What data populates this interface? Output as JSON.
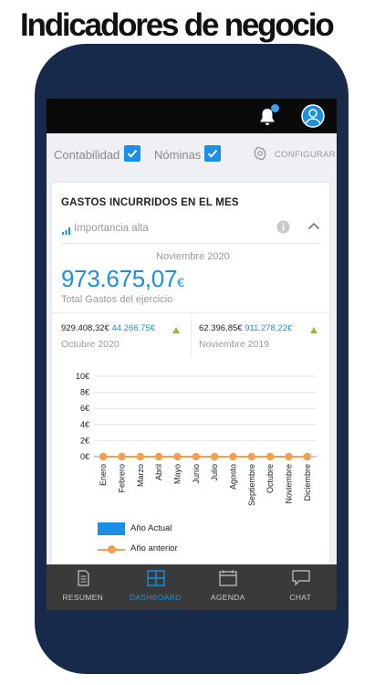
{
  "headline": "Indicadores de negocio",
  "filters": {
    "contabilidad": {
      "label": "Contabilidad",
      "checked": true
    },
    "nominas": {
      "label": "Nóminas",
      "checked": true
    },
    "configure_label": "CONFIGURAR"
  },
  "card": {
    "title": "GASTOS INCURRIDOS EN EL MES",
    "importance": "Importancia alta",
    "period": "Noviembre 2020",
    "total_value": "973.675,07",
    "total_currency": "€",
    "total_label": "Total Gastos del ejercicio",
    "comparisons": [
      {
        "value": "929.408,32€",
        "delta": "44.266,75€",
        "period": "Octubre 2020",
        "trend": "up"
      },
      {
        "value": "62.396,85€",
        "delta": "911.278,22€",
        "period": "Noviembre 2019",
        "trend": "up"
      }
    ]
  },
  "chart_data": {
    "type": "line",
    "categories": [
      "Enero",
      "Febrero",
      "Marzo",
      "Abril",
      "Mayo",
      "Junio",
      "Julio",
      "Agosto",
      "Septiembre",
      "Octubre",
      "Noviembre",
      "Diciembre"
    ],
    "y_ticks": [
      "10€",
      "8€",
      "6€",
      "4€",
      "2€",
      "0€"
    ],
    "ylim": [
      0,
      10
    ],
    "series": [
      {
        "name": "Año Actual",
        "type": "bar",
        "color": "#1a8fe3",
        "values": [
          0,
          0,
          0,
          0,
          0,
          0,
          0,
          0,
          0,
          0,
          0,
          0
        ]
      },
      {
        "name": "Año anterior",
        "type": "line",
        "color": "#f0a050",
        "values": [
          0,
          0,
          0,
          0,
          0,
          0,
          0,
          0,
          0,
          0,
          0,
          0
        ]
      }
    ],
    "grid": true,
    "legend_position": "bottom-left"
  },
  "tabs": [
    {
      "label": "RESUMEN",
      "icon": "document-icon",
      "active": false
    },
    {
      "label": "DASHBOARD",
      "icon": "dashboard-icon",
      "active": true
    },
    {
      "label": "AGENDA",
      "icon": "calendar-icon",
      "active": false
    },
    {
      "label": "CHAT",
      "icon": "chat-icon",
      "active": false
    }
  ],
  "colors": {
    "accent": "#1a8fe3",
    "phone_frame": "#182a49",
    "up_trend": "#8cbf3f",
    "line_series": "#f0a050"
  }
}
